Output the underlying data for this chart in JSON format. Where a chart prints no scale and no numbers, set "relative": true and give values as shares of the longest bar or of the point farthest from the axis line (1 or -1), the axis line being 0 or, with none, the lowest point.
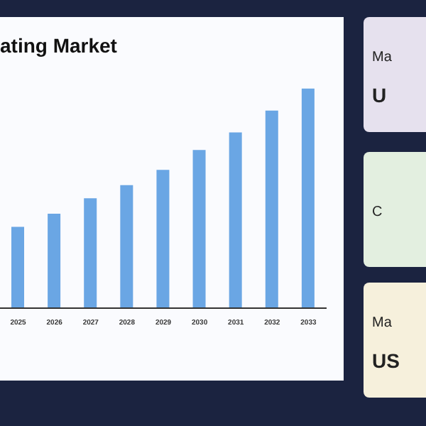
{
  "chart_data": {
    "type": "bar",
    "title": "ating Market",
    "categories": [
      "2025",
      "2026",
      "2027",
      "2028",
      "2029",
      "2030",
      "2031",
      "2032",
      "2033"
    ],
    "values": [
      0.37,
      0.43,
      0.5,
      0.56,
      0.63,
      0.72,
      0.8,
      0.9,
      1
    ],
    "color": "#6aa6e4",
    "relative": true,
    "annotations": [
      "Ma",
      "U",
      "C",
      "Ma",
      "US"
    ]
  }
}
